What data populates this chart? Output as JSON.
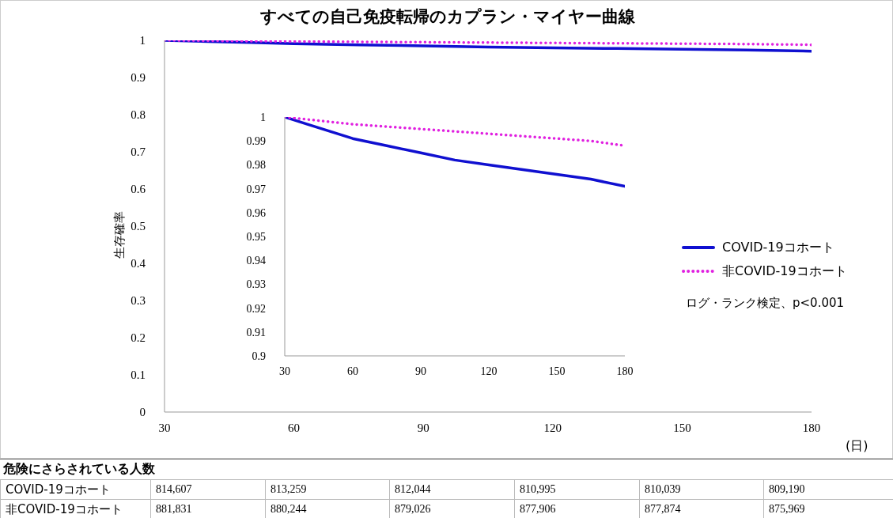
{
  "chart_data": [
    {
      "type": "line",
      "title": "すべての自己免疫転帰のカプラン・マイヤー曲線",
      "xlabel": "(日)",
      "ylabel": "生存確率",
      "xlim": [
        30,
        180
      ],
      "xticks": [
        30,
        60,
        90,
        120,
        150,
        180
      ],
      "ylim": [
        0,
        1
      ],
      "yticks": [
        0,
        0.1,
        0.2,
        0.3,
        0.4,
        0.5,
        0.6,
        0.7,
        0.8,
        0.9,
        1
      ],
      "legend": "right",
      "marker": "none",
      "annotations": [
        "ログ・ランク検定、p<0.001"
      ],
      "x": [
        30,
        40,
        50,
        60,
        75,
        90,
        105,
        120,
        135,
        150,
        165,
        180
      ],
      "series": [
        {
          "name": "COVID-19コホート",
          "color": "#1010d0",
          "line_style": "solid",
          "values": [
            1,
            0.997,
            0.994,
            0.991,
            0.988,
            0.985,
            0.982,
            0.98,
            0.978,
            0.976,
            0.974,
            0.971
          ]
        },
        {
          "name": "非COVID-19コホート",
          "color": "#e020e0",
          "line_style": "dotted",
          "values": [
            1,
            0.999,
            0.998,
            0.997,
            0.996,
            0.995,
            0.994,
            0.993,
            0.992,
            0.991,
            0.99,
            0.988
          ]
        }
      ]
    },
    {
      "type": "line",
      "xlim": [
        30,
        180
      ],
      "xticks": [
        30,
        60,
        90,
        120,
        150,
        180
      ],
      "ylim": [
        0.9,
        1
      ],
      "yticks": [
        0.9,
        0.91,
        0.92,
        0.93,
        0.94,
        0.95,
        0.96,
        0.97,
        0.98,
        0.99,
        1
      ],
      "marker": "none",
      "x": [
        30,
        40,
        50,
        60,
        75,
        90,
        105,
        120,
        135,
        150,
        165,
        180
      ],
      "series": [
        {
          "color": "#1010d0",
          "line_style": "solid",
          "values": [
            1,
            0.997,
            0.994,
            0.991,
            0.988,
            0.985,
            0.982,
            0.98,
            0.978,
            0.976,
            0.974,
            0.971
          ]
        },
        {
          "color": "#e020e0",
          "line_style": "dotted",
          "values": [
            1,
            0.999,
            0.998,
            0.997,
            0.996,
            0.995,
            0.994,
            0.993,
            0.992,
            0.991,
            0.99,
            0.988
          ]
        }
      ]
    },
    {
      "type": "other",
      "title": "危険にさらされている人数",
      "annotations": [
        "COVID-19コホート",
        "814,607",
        "813,259",
        "812,044",
        "810,995",
        "810,039",
        "809,190",
        "非COVID-19コホート",
        "881,831",
        "880,244",
        "879,026",
        "877,906",
        "877,874",
        "875,969"
      ]
    }
  ]
}
